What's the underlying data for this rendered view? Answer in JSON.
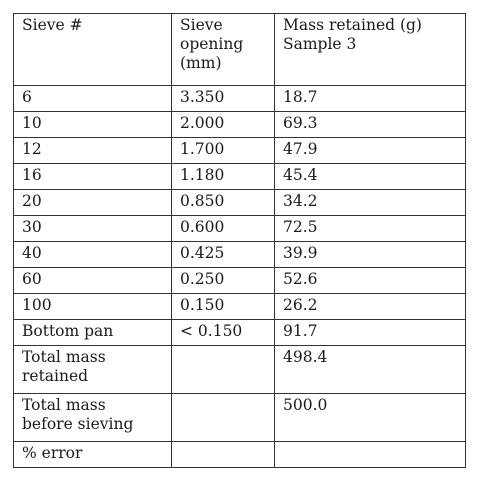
{
  "table": {
    "headers": [
      "Sieve #",
      "Sieve\nopening\n(mm)",
      "Mass retained (g)\nSample 3"
    ],
    "rows": [
      [
        "6",
        "3.350",
        "18.7"
      ],
      [
        "10",
        "2.000",
        "69.3"
      ],
      [
        "12",
        "1.700",
        "47.9"
      ],
      [
        "16",
        "1.180",
        "45.4"
      ],
      [
        "20",
        "0.850",
        "34.2"
      ],
      [
        "30",
        "0.600",
        "72.5"
      ],
      [
        "40",
        "0.425",
        "39.9"
      ],
      [
        "60",
        "0.250",
        "52.6"
      ],
      [
        "100",
        "0.150",
        "26.2"
      ],
      [
        "Bottom pan",
        "< 0.150",
        "91.7"
      ]
    ],
    "summary": [
      [
        "Total mass\nretained",
        "",
        "498.4"
      ],
      [
        "Total mass\nbefore sieving",
        "",
        "500.0"
      ],
      [
        "% error",
        "",
        ""
      ]
    ]
  }
}
